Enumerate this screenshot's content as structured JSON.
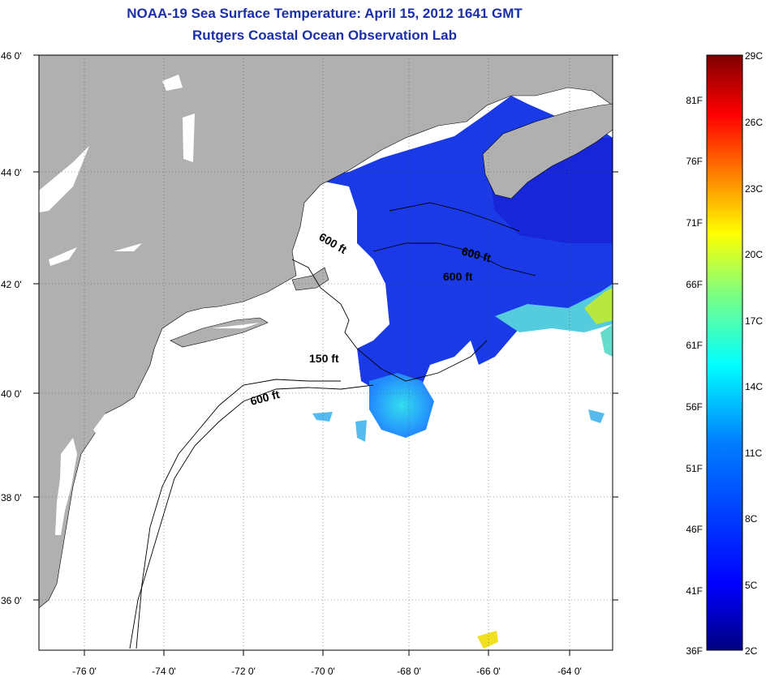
{
  "header": {
    "title": "NOAA-19 Sea Surface Temperature:  April 15, 2012 1641 GMT",
    "subtitle": "Rutgers Coastal Ocean Observation Lab"
  },
  "map": {
    "lat_labels": [
      "46 0'",
      "44 0'",
      "42 0'",
      "40 0'",
      "38 0'",
      "36 0'"
    ],
    "lon_labels": [
      "-76 0'",
      "-74 0'",
      "-72 0'",
      "-70 0'",
      "-68 0'",
      "-66 0'",
      "-64 0'"
    ],
    "contour_labels": [
      "600 ft",
      "600 ft",
      "600 ft",
      "150 ft",
      "600 ft"
    ],
    "colors": {
      "land": "#b0b0b0",
      "ocean_no_data": "#ffffff",
      "title": "#1a2fa8"
    }
  },
  "colorbar": {
    "celsius_labels": [
      "29C",
      "26C",
      "23C",
      "20C",
      "17C",
      "14C",
      "11C",
      "8C",
      "5C",
      "2C"
    ],
    "fahrenheit_labels": [
      "81F",
      "76F",
      "71F",
      "66F",
      "61F",
      "56F",
      "51F",
      "46F",
      "41F",
      "36F"
    ],
    "range_c": [
      2,
      29
    ],
    "gradient": [
      "#00007f",
      "#0000ff",
      "#007fff",
      "#00ffff",
      "#7fff7f",
      "#ffff00",
      "#ff7f00",
      "#ff0000",
      "#7f0000"
    ]
  }
}
